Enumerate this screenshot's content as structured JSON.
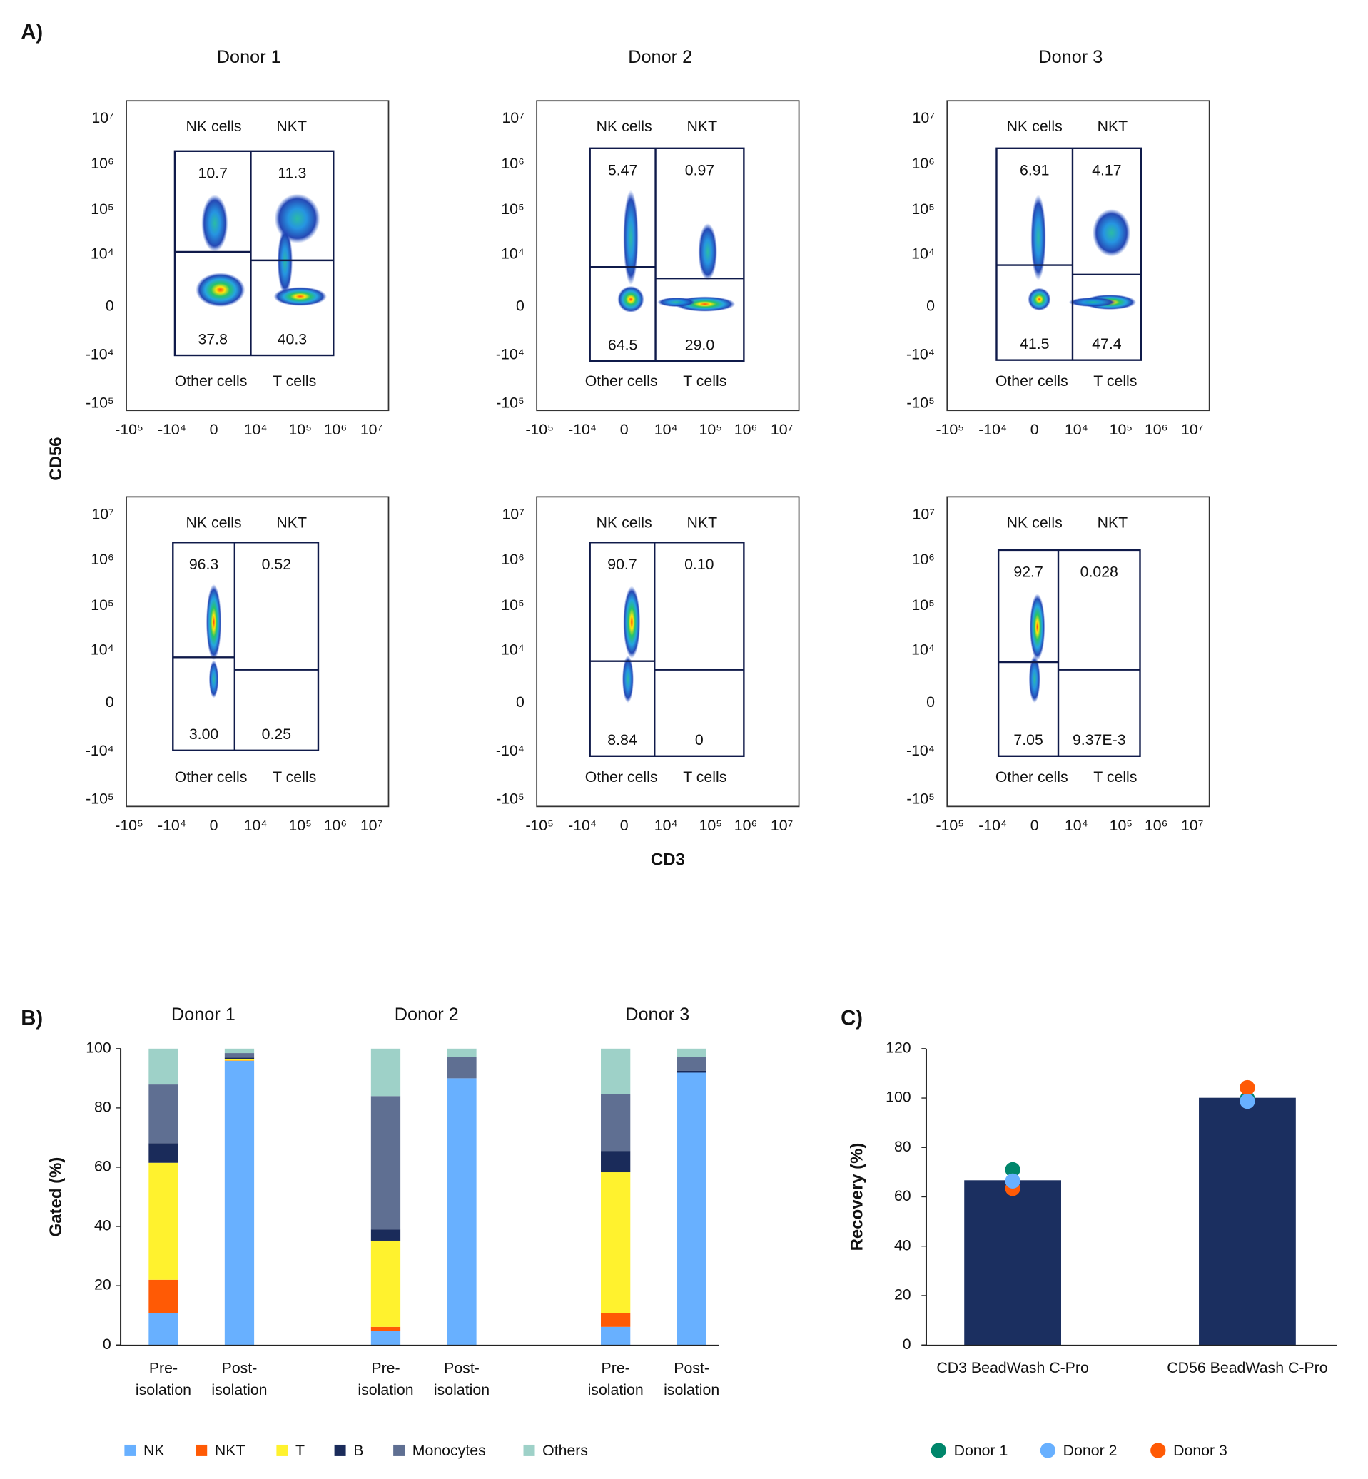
{
  "panel_a": {
    "label": "A)",
    "y_axis_label": "CD56",
    "x_axis_label": "CD3",
    "donors": [
      "Donor 1",
      "Donor 2",
      "Donor 3"
    ],
    "y_ticks": [
      "10⁷",
      "10⁶",
      "10⁵",
      "10⁴",
      "0",
      "-10⁴",
      "-10⁵"
    ],
    "x_ticks": [
      "-10⁵",
      "-10⁴",
      "0",
      "10⁴",
      "10⁵",
      "10⁶",
      "10⁷"
    ],
    "gate_labels": {
      "nk": "NK cells",
      "nkt": "NKT",
      "other": "Other cells",
      "t": "T cells"
    },
    "plots": [
      {
        "row": "pre-isolation",
        "donor": "Donor 1",
        "nk": "10.7",
        "nkt": "11.3",
        "other": "37.8",
        "t": "40.3"
      },
      {
        "row": "pre-isolation",
        "donor": "Donor 2",
        "nk": "5.47",
        "nkt": "0.97",
        "other": "64.5",
        "t": "29.0"
      },
      {
        "row": "pre-isolation",
        "donor": "Donor 3",
        "nk": "6.91",
        "nkt": "4.17",
        "other": "41.5",
        "t": "47.4"
      },
      {
        "row": "post-isolation",
        "donor": "Donor 1",
        "nk": "96.3",
        "nkt": "0.52",
        "other": "3.00",
        "t": "0.25"
      },
      {
        "row": "post-isolation",
        "donor": "Donor 2",
        "nk": "90.7",
        "nkt": "0.10",
        "other": "8.84",
        "t": "0"
      },
      {
        "row": "post-isolation",
        "donor": "Donor 3",
        "nk": "92.7",
        "nkt": "0.028",
        "other": "7.05",
        "t": "9.37E-3"
      }
    ]
  },
  "chart_data": [
    {
      "panel": "B)",
      "type": "bar",
      "stacked": true,
      "ylabel": "Gated (%)",
      "ylim": [
        0,
        100
      ],
      "yticks": [
        "0",
        "20",
        "40",
        "60",
        "80",
        "100"
      ],
      "groups": [
        "Donor 1",
        "Donor 2",
        "Donor 3"
      ],
      "categories": [
        "Pre-\nisolation",
        "Post-\nisolation"
      ],
      "series": [
        {
          "name": "NK",
          "color": "#68b0ff",
          "values": [
            [
              10.7,
              95.9
            ],
            [
              4.8,
              90.0
            ],
            [
              6.1,
              91.9
            ]
          ]
        },
        {
          "name": "NKT",
          "color": "#ff5a05",
          "values": [
            [
              11.3,
              0.1
            ],
            [
              1.3,
              0
            ],
            [
              4.6,
              0
            ]
          ]
        },
        {
          "name": "T",
          "color": "#fff22e",
          "values": [
            [
              39.5,
              0.5
            ],
            [
              29.1,
              0
            ],
            [
              47.6,
              0
            ]
          ]
        },
        {
          "name": "B",
          "color": "#1a2b5a",
          "values": [
            [
              6.6,
              0.5
            ],
            [
              3.8,
              0
            ],
            [
              7.2,
              0.6
            ]
          ]
        },
        {
          "name": "Monocytes",
          "color": "#5f6f92",
          "values": [
            [
              19.8,
              1.5
            ],
            [
              45.0,
              7.2
            ],
            [
              19.2,
              4.7
            ]
          ]
        },
        {
          "name": "Others",
          "color": "#9ed1c8",
          "values": [
            [
              12.1,
              1.5
            ],
            [
              16.0,
              2.8
            ],
            [
              15.3,
              2.8
            ]
          ]
        }
      ],
      "legend": "bottom"
    },
    {
      "panel": "C)",
      "type": "bar",
      "ylabel": "Recovery (%)",
      "ylim": [
        0,
        120
      ],
      "yticks": [
        "0",
        "20",
        "40",
        "60",
        "80",
        "100",
        "120"
      ],
      "categories": [
        "CD3 BeadWash C-Pro",
        "CD56 BeadWash C-Pro"
      ],
      "values": [
        66.7,
        100.1
      ],
      "bar_color": "#1b2f60",
      "points": [
        {
          "name": "Donor 1",
          "color": "#00866b",
          "values": [
            71.0,
            99.7
          ]
        },
        {
          "name": "Donor 2",
          "color": "#68b0ff",
          "values": [
            66.4,
            98.7
          ]
        },
        {
          "name": "Donor 3",
          "color": "#ff5a05",
          "values": [
            63.4,
            104.2
          ]
        }
      ],
      "legend": "bottom"
    }
  ]
}
